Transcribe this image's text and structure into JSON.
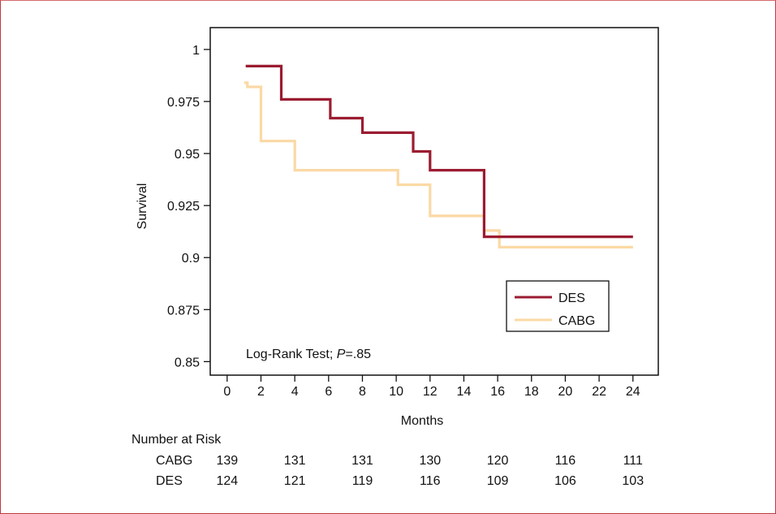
{
  "colors": {
    "des": "#9b1c31",
    "cabg": "#fbd9a5",
    "frame": "#c0393e"
  },
  "chart_data": {
    "type": "line",
    "subtype": "kaplan-meier step",
    "xlabel": "Months",
    "ylabel": "Survival",
    "xlim": [
      -1,
      25.5
    ],
    "ylim": [
      0.8435,
      1.0105
    ],
    "xticks": [
      0,
      2,
      4,
      6,
      8,
      10,
      12,
      14,
      16,
      18,
      20,
      22,
      24
    ],
    "yticks": [
      1,
      0.975,
      0.95,
      0.925,
      0.9,
      0.875,
      0.85
    ],
    "ytick_labels": [
      "1",
      "0.975",
      "0.95",
      "0.925",
      "0.9",
      "0.875",
      "0.85"
    ],
    "grid": false,
    "legend_position": "lower-right",
    "annotation": {
      "prefix": "Log-Rank Test; ",
      "p_symbol": "P",
      "p_value": "=.85"
    },
    "series": [
      {
        "name": "DES",
        "color": "#9b1c31",
        "points": [
          [
            1.1,
            0.992
          ],
          [
            3.2,
            0.992
          ],
          [
            3.2,
            0.976
          ],
          [
            6.1,
            0.976
          ],
          [
            6.1,
            0.967
          ],
          [
            8.0,
            0.967
          ],
          [
            8.0,
            0.96
          ],
          [
            11.0,
            0.96
          ],
          [
            11.0,
            0.951
          ],
          [
            12.0,
            0.951
          ],
          [
            12.0,
            0.942
          ],
          [
            15.2,
            0.942
          ],
          [
            15.2,
            0.91
          ],
          [
            24.0,
            0.91
          ]
        ]
      },
      {
        "name": "CABG",
        "color": "#fbd9a5",
        "points": [
          [
            1.0,
            0.984
          ],
          [
            1.2,
            0.984
          ],
          [
            1.2,
            0.982
          ],
          [
            2.0,
            0.982
          ],
          [
            2.0,
            0.956
          ],
          [
            4.0,
            0.956
          ],
          [
            4.0,
            0.942
          ],
          [
            10.1,
            0.942
          ],
          [
            10.1,
            0.935
          ],
          [
            12.0,
            0.935
          ],
          [
            12.0,
            0.92
          ],
          [
            15.2,
            0.92
          ],
          [
            15.2,
            0.913
          ],
          [
            16.1,
            0.913
          ],
          [
            16.1,
            0.905
          ],
          [
            24.0,
            0.905
          ]
        ]
      }
    ],
    "risk_table": {
      "title": "Number at Risk",
      "months": [
        0,
        4,
        8,
        12,
        16,
        20,
        24
      ],
      "rows": [
        {
          "label": "CABG",
          "values": [
            "139",
            "131",
            "131",
            "130",
            "120",
            "116",
            "111"
          ]
        },
        {
          "label": "DES",
          "values": [
            "124",
            "121",
            "119",
            "116",
            "109",
            "106",
            "103"
          ]
        }
      ]
    }
  }
}
